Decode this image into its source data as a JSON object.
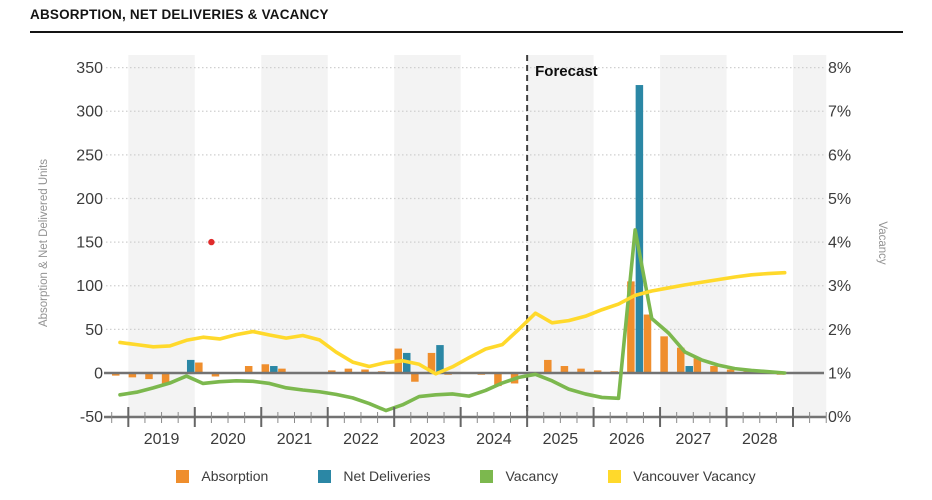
{
  "page": {
    "title": "ABSORPTION, NET DELIVERIES & VACANCY"
  },
  "chart_data": {
    "type": "bar+line combo, quarterly",
    "title": "ABSORPTION, NET DELIVERIES & VACANCY",
    "forecast_label": "Forecast",
    "forecast_starts_after": "2024 Q4",
    "quarterly_from": "2018 Q4",
    "quarterly_to": "2028 Q4",
    "left_axis": {
      "title": "Absorption & Net Delivered Units",
      "tick_values": [
        350,
        300,
        250,
        200,
        150,
        100,
        50,
        0,
        -50
      ],
      "min": -50,
      "max": 350
    },
    "right_axis": {
      "title": "Vacancy",
      "tick_labels": [
        "8%",
        "7%",
        "6%",
        "5%",
        "4%",
        "3%",
        "2%",
        "1%",
        "0%"
      ],
      "min": 0,
      "max": 8
    },
    "x_axis": {
      "year_labels": [
        "2019",
        "2020",
        "2021",
        "2022",
        "2023",
        "2024",
        "2025",
        "2026",
        "2027",
        "2028"
      ],
      "shaded_years": [
        "2019",
        "2021",
        "2023",
        "2025",
        "2027",
        "2029"
      ]
    },
    "series": [
      {
        "name": "Absorption",
        "type": "bar",
        "axis": "left",
        "color": "#EF8E2D",
        "values": [
          -3,
          -5,
          -7,
          -13,
          0,
          12,
          -4,
          0,
          8,
          10,
          5,
          1,
          -1,
          3,
          5,
          4,
          2,
          28,
          -10,
          23,
          -2,
          0,
          -2,
          -15,
          -12,
          -3,
          15,
          8,
          5,
          3,
          2,
          105,
          67,
          42,
          29,
          17,
          8,
          4,
          2,
          1,
          -2
        ]
      },
      {
        "name": "Net Deliveries",
        "type": "bar",
        "axis": "left",
        "color": "#2B87A5",
        "values": [
          0,
          0,
          0,
          0,
          15,
          0,
          0,
          0,
          0,
          8,
          0,
          0,
          0,
          0,
          0,
          0,
          0,
          23,
          0,
          32,
          0,
          0,
          0,
          0,
          0,
          0,
          0,
          0,
          0,
          0,
          0,
          330,
          0,
          0,
          8,
          0,
          0,
          0,
          0,
          0,
          0
        ]
      },
      {
        "name": "Vacancy",
        "type": "line",
        "axis": "right",
        "color": "#7CB84E",
        "values": [
          0.5,
          0.56,
          0.66,
          0.77,
          0.93,
          0.76,
          0.8,
          0.82,
          0.81,
          0.76,
          0.66,
          0.61,
          0.57,
          0.51,
          0.43,
          0.3,
          0.14,
          0.27,
          0.46,
          0.5,
          0.52,
          0.47,
          0.6,
          0.77,
          0.9,
          0.97,
          0.82,
          0.63,
          0.52,
          0.44,
          0.42,
          4.28,
          2.25,
          1.92,
          1.48,
          1.3,
          1.18,
          1.1,
          1.06,
          1.03,
          1.0
        ]
      },
      {
        "name": "Vancouver Vacancy",
        "type": "line",
        "axis": "right",
        "color": "#FFD92B",
        "values": [
          1.7,
          1.65,
          1.6,
          1.62,
          1.75,
          1.82,
          1.78,
          1.88,
          1.95,
          1.87,
          1.8,
          1.86,
          1.76,
          1.48,
          1.25,
          1.15,
          1.24,
          1.28,
          1.2,
          0.98,
          1.14,
          1.35,
          1.55,
          1.65,
          2.0,
          2.37,
          2.15,
          2.2,
          2.3,
          2.45,
          2.58,
          2.78,
          2.88,
          2.95,
          3.02,
          3.08,
          3.14,
          3.2,
          3.25,
          3.28,
          3.3
        ]
      }
    ],
    "annotations": {
      "red_dot": {
        "quarter": "2020 Q2",
        "quarter_index": 6,
        "value": 150,
        "color": "#E02B2B"
      }
    },
    "colors": {
      "band": "#f3f3f3",
      "gridline": "#cfcfcf",
      "zero_line": "#737373",
      "axis_line": "#737373",
      "forecast_line": "#3d3d3d"
    },
    "grid": "horizontal dotted, alternating vertical year shading",
    "legend_position": "bottom center"
  },
  "legend": {
    "items": [
      {
        "label": "Absorption",
        "color": "#EF8E2D"
      },
      {
        "label": "Net Deliveries",
        "color": "#2B87A5"
      },
      {
        "label": "Vacancy",
        "color": "#7CB84E"
      },
      {
        "label": "Vancouver Vacancy",
        "color": "#FFD92B"
      }
    ]
  }
}
